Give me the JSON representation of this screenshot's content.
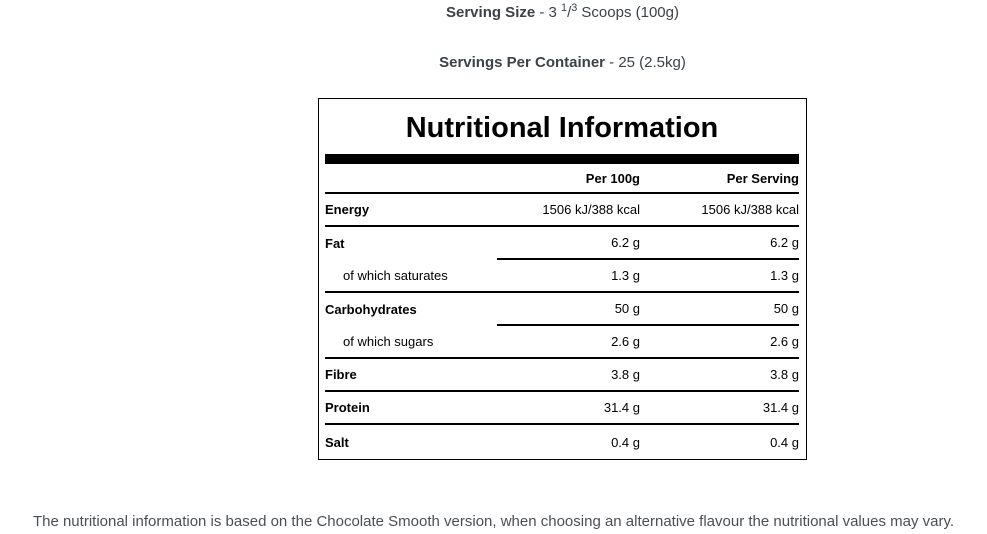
{
  "colors": {
    "page_bg": "#ffffff",
    "top_text": "#3b4248",
    "table_text": "#000000",
    "table_border": "#000000",
    "header_bar": "#000000",
    "footnote_text": "#4b4f54"
  },
  "serving_info": {
    "serving_size_label": "Serving Size",
    "serving_size_prefix": " - 3 ",
    "serving_size_sup1": "1",
    "serving_size_slash": "/",
    "serving_size_sup2": "3",
    "serving_size_suffix": " Scoops (100g)",
    "servings_label": "Servings Per Container",
    "servings_value": " - 25 (2.5kg)"
  },
  "nutrition_table": {
    "title": "Nutritional Information",
    "col_per_100g": "Per 100g",
    "col_per_serving": "Per Serving",
    "rows": [
      {
        "label": "Energy",
        "per_100g": "1506 kJ/388 kcal",
        "per_serving": "1506 kJ/388 kcal"
      },
      {
        "label": "Fat",
        "per_100g": "6.2 g",
        "per_serving": "6.2 g"
      },
      {
        "label": "of which saturates",
        "per_100g": "1.3 g",
        "per_serving": "1.3 g"
      },
      {
        "label": "Carbohydrates",
        "per_100g": "50 g",
        "per_serving": "50 g"
      },
      {
        "label": "of which sugars",
        "per_100g": "2.6 g",
        "per_serving": "2.6 g"
      },
      {
        "label": "Fibre",
        "per_100g": "3.8 g",
        "per_serving": "3.8 g"
      },
      {
        "label": "Protein",
        "per_100g": "31.4 g",
        "per_serving": "31.4 g"
      },
      {
        "label": "Salt",
        "per_100g": "0.4 g",
        "per_serving": "0.4 g"
      }
    ]
  },
  "footnote": "The nutritional information is based on the Chocolate Smooth version, when choosing an alternative flavour the nutritional values may vary."
}
